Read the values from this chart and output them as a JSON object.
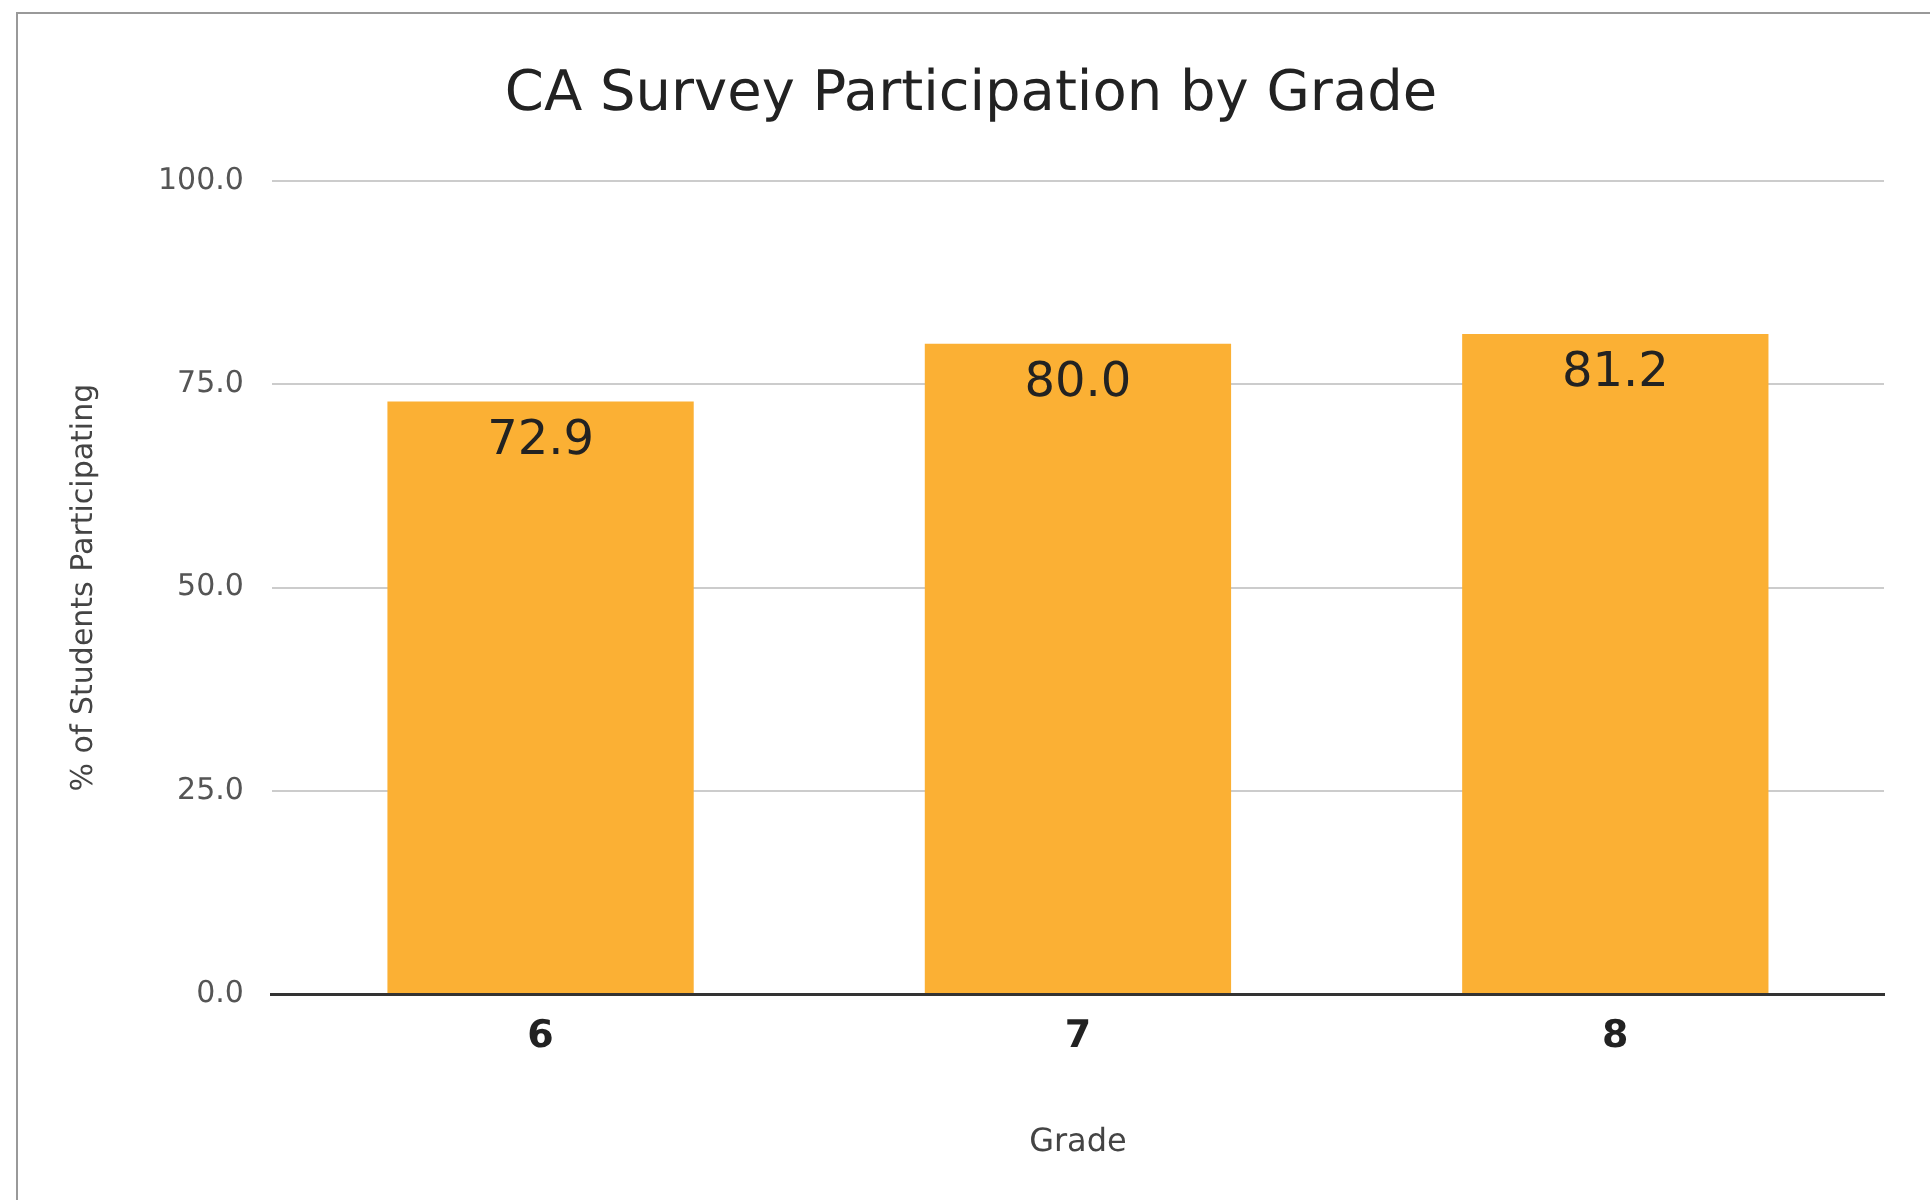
{
  "chart_data": {
    "type": "bar",
    "title": "CA Survey Participation by Grade",
    "xlabel": "Grade",
    "ylabel": "% of Students Participating",
    "categories": [
      "6",
      "7",
      "8"
    ],
    "values": [
      72.9,
      80.0,
      81.2
    ],
    "color": "#fbb034",
    "value_labels": [
      "72.9",
      "80.0",
      "81.2"
    ],
    "ylim": [
      0,
      100
    ],
    "yticks": [
      {
        "value": 0,
        "label": "0.0"
      },
      {
        "value": 25,
        "label": "25.0"
      },
      {
        "value": 50,
        "label": "50.0"
      },
      {
        "value": 75,
        "label": "75.0"
      },
      {
        "value": 100,
        "label": "100.0"
      }
    ],
    "grid": "y",
    "legend": false
  }
}
